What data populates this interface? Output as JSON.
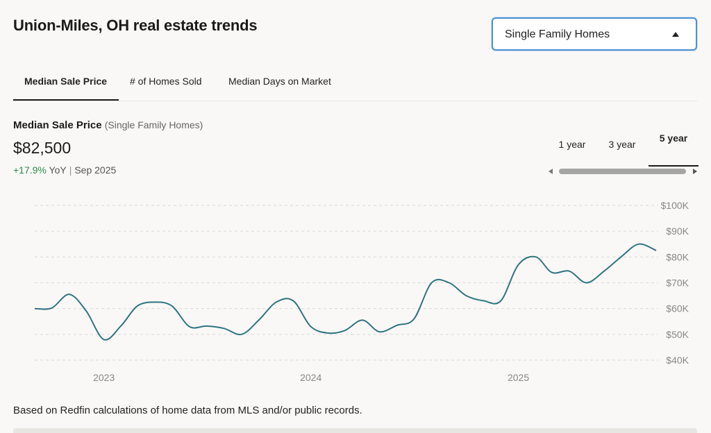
{
  "page": {
    "title": "Union-Miles, OH real estate trends",
    "footnote": "Based on Redfin calculations of home data from MLS and/or public records."
  },
  "home_type_select": {
    "value": "Single Family Homes"
  },
  "tabs": [
    {
      "label": "Median Sale Price",
      "active": true
    },
    {
      "label": "# of Homes Sold",
      "active": false
    },
    {
      "label": "Median Days on Market",
      "active": false
    }
  ],
  "metric": {
    "title": "Median Sale Price",
    "subtitle": "(Single Family Homes)",
    "value": "$82,500",
    "change": "+17.9%",
    "change_unit": "YoY",
    "date": "Sep 2025"
  },
  "time_ranges": [
    {
      "label": "1 year",
      "active": false
    },
    {
      "label": "3 year",
      "active": false
    },
    {
      "label": "5 year",
      "active": true
    }
  ],
  "colors": {
    "line": "#2e7480",
    "grid": "#d9d9d9",
    "positive": "#2c8a4a"
  },
  "chart_data": {
    "type": "line",
    "title": "",
    "xlabel": "",
    "ylabel": "",
    "ylim": [
      40000,
      100000
    ],
    "y_ticks": [
      40000,
      50000,
      60000,
      70000,
      80000,
      90000,
      100000
    ],
    "y_tick_labels": [
      "$40K",
      "$50K",
      "$60K",
      "$70K",
      "$80K",
      "$90K",
      "$100K"
    ],
    "x_tick_labels": [
      "2023",
      "2024",
      "2025"
    ],
    "x_tick_dates": [
      "2023-01-01",
      "2024-01-01",
      "2025-01-01"
    ],
    "x_range": [
      "2022-09-01",
      "2025-09-01"
    ],
    "grid": true,
    "series": [
      {
        "x": [
          "2022-09",
          "2022-10",
          "2022-11",
          "2022-12",
          "2023-01",
          "2023-02",
          "2023-03",
          "2023-04",
          "2023-05",
          "2023-06",
          "2023-07",
          "2023-08",
          "2023-09",
          "2023-10",
          "2023-11",
          "2023-12",
          "2024-01",
          "2024-02",
          "2024-03",
          "2024-04",
          "2024-05",
          "2024-06",
          "2024-07",
          "2024-08",
          "2024-09",
          "2024-10",
          "2024-11",
          "2024-12",
          "2025-01",
          "2025-02",
          "2025-03",
          "2025-04",
          "2025-05",
          "2025-06",
          "2025-07",
          "2025-08",
          "2025-09"
        ],
        "y": [
          60000,
          60200,
          65500,
          59000,
          48000,
          53500,
          61000,
          62500,
          61000,
          53000,
          53200,
          52300,
          50000,
          55500,
          62500,
          63000,
          53000,
          50500,
          51500,
          55500,
          51000,
          53500,
          56000,
          70000,
          70000,
          65000,
          63000,
          63000,
          77000,
          80000,
          74000,
          74500,
          70000,
          74500,
          80000,
          85000,
          82500
        ]
      }
    ]
  }
}
